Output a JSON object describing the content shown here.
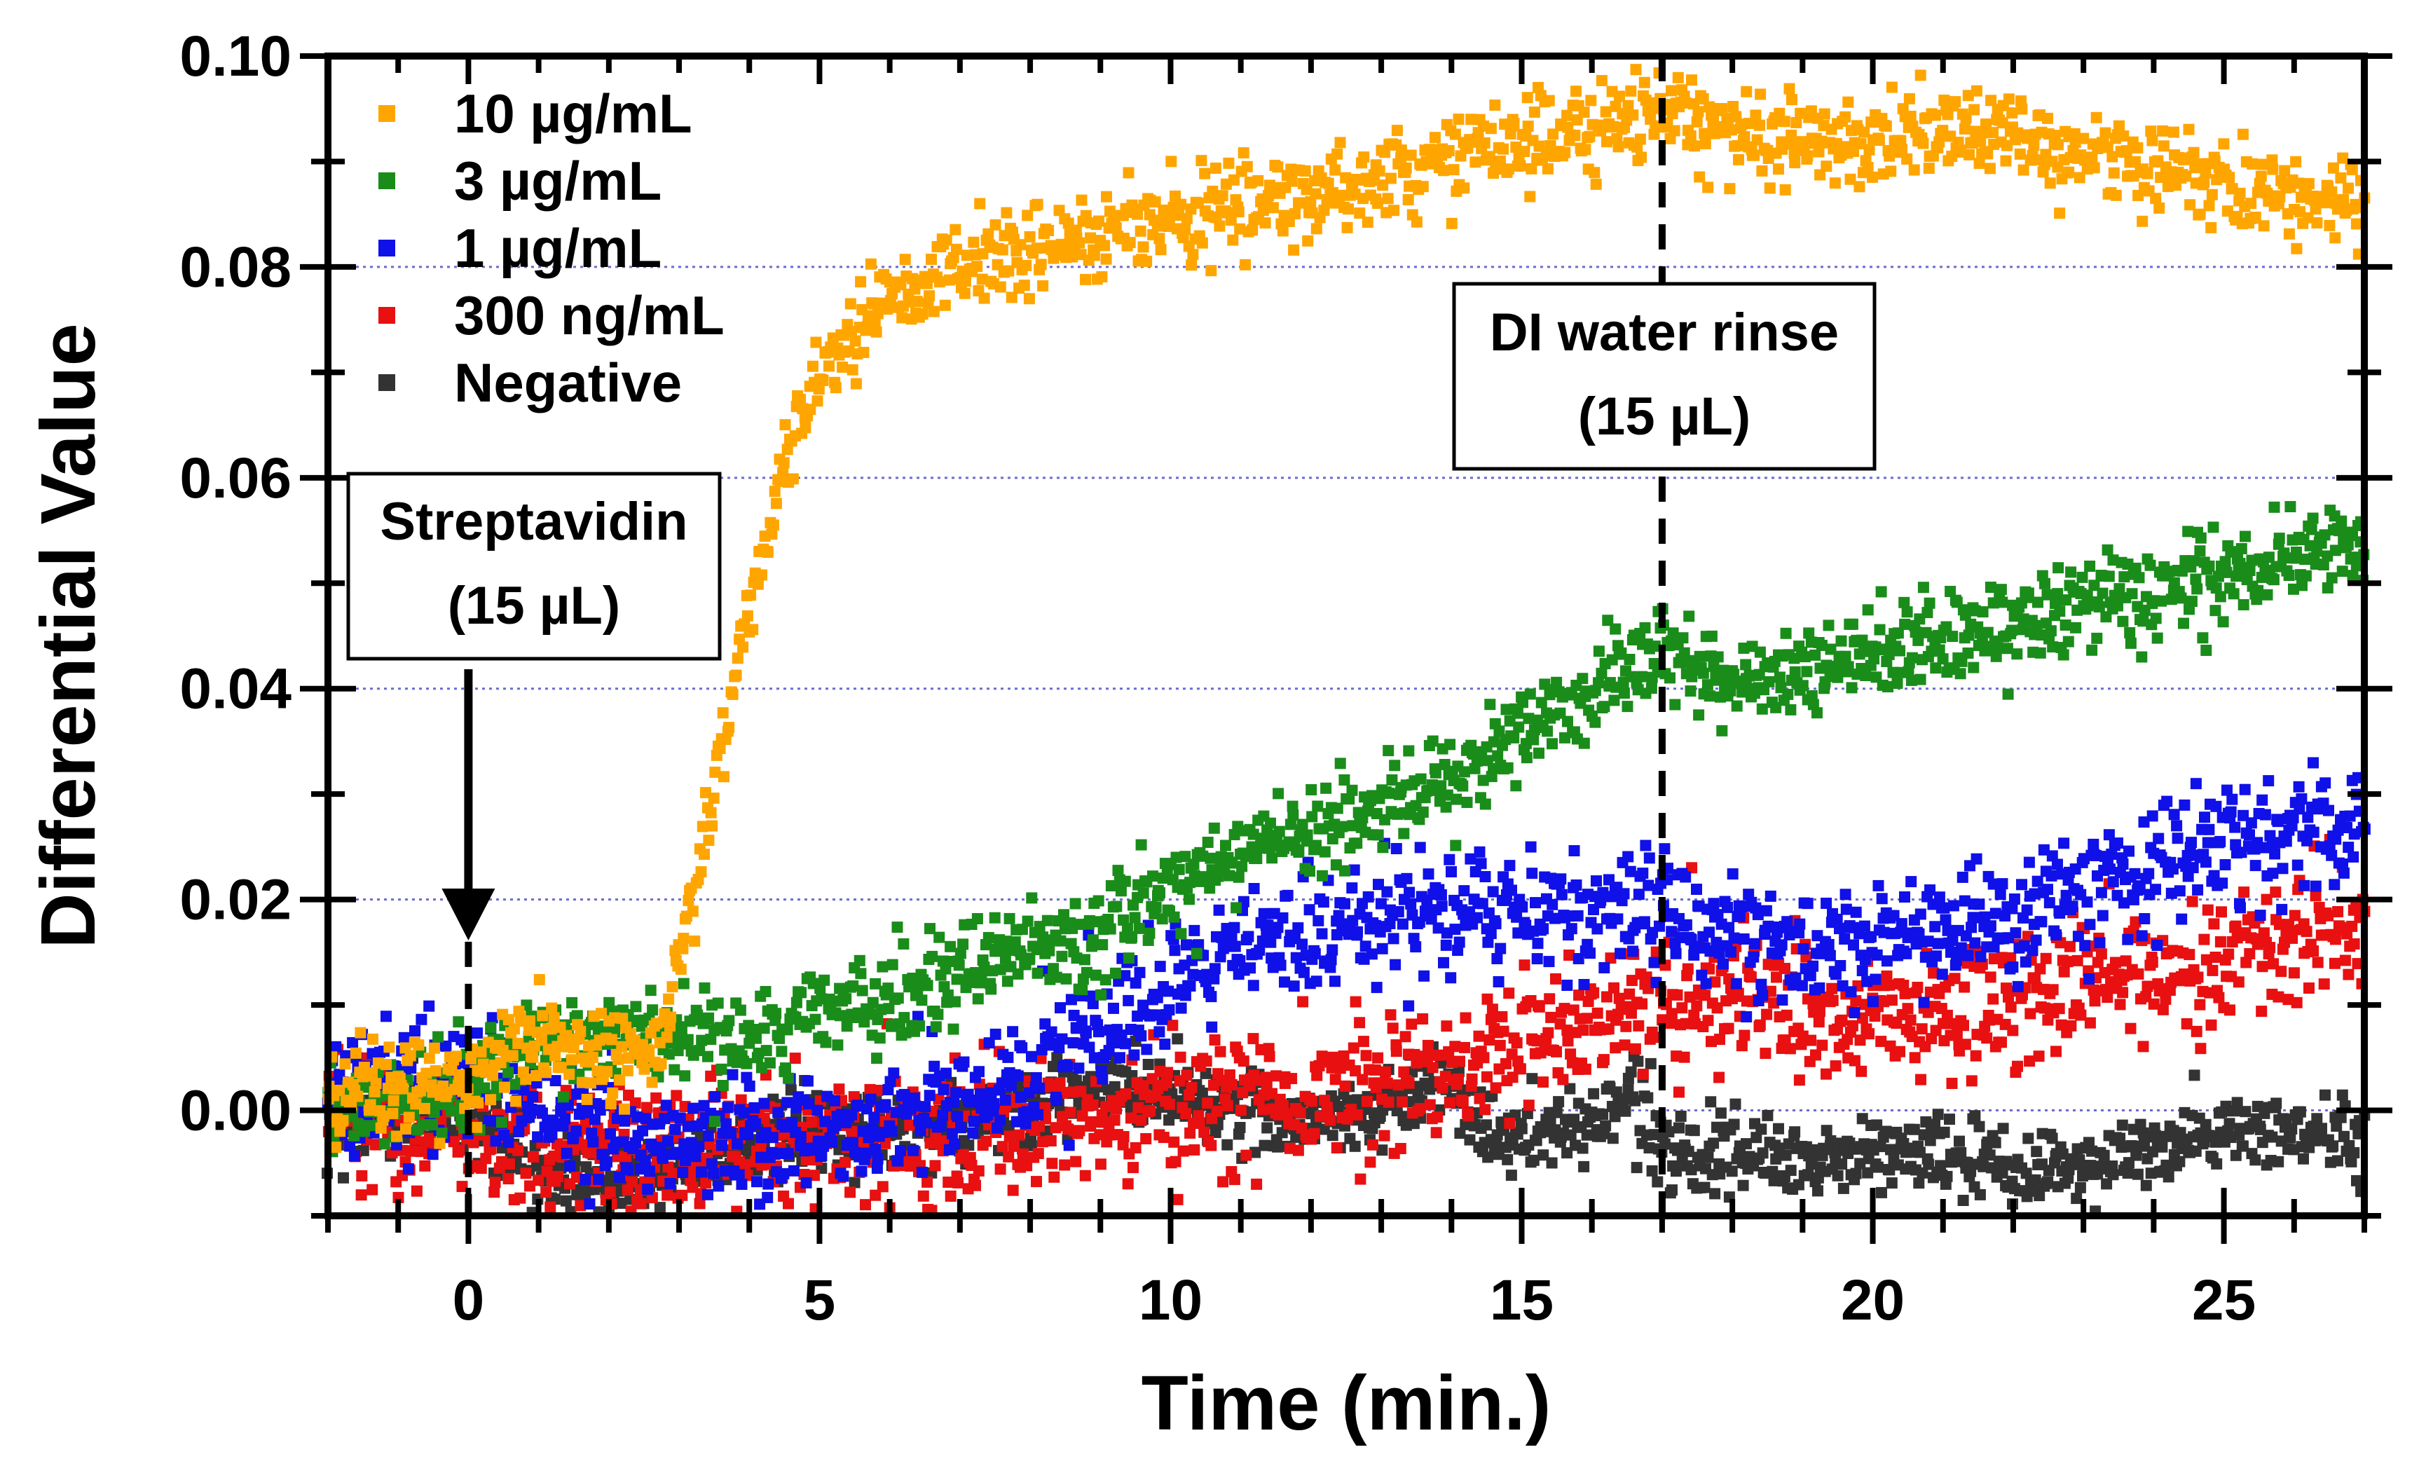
{
  "chart_data": {
    "type": "scatter",
    "title": "",
    "xlabel": "Time (min.)",
    "ylabel": "Differential Value",
    "xlim": [
      -2,
      27
    ],
    "ylim": [
      -0.01,
      0.1
    ],
    "xticks": [
      0,
      5,
      10,
      15,
      20,
      25
    ],
    "yticks": [
      0.0,
      0.02,
      0.04,
      0.06,
      0.08,
      0.1
    ],
    "xtick_labels": [
      "0",
      "5",
      "10",
      "15",
      "20",
      "25"
    ],
    "ytick_labels": [
      "0.00",
      "0.02",
      "0.04",
      "0.06",
      "0.08",
      "0.10"
    ],
    "grid": "horizontal dotted",
    "legend_position": "top-left",
    "series": [
      {
        "name": "10 µg/mL",
        "color": "#FFA500",
        "trend": [
          [
            -2,
            0.001
          ],
          [
            0,
            0.003
          ],
          [
            1,
            0.007
          ],
          [
            2,
            0.005
          ],
          [
            2.7,
            0.006
          ],
          [
            3.0,
            0.014
          ],
          [
            3.5,
            0.03
          ],
          [
            4.0,
            0.048
          ],
          [
            4.5,
            0.062
          ],
          [
            5,
            0.07
          ],
          [
            5.5,
            0.074
          ],
          [
            6,
            0.077
          ],
          [
            7,
            0.08
          ],
          [
            8,
            0.082
          ],
          [
            9,
            0.083
          ],
          [
            10,
            0.085
          ],
          [
            12,
            0.087
          ],
          [
            14,
            0.09
          ],
          [
            15,
            0.092
          ],
          [
            16,
            0.093
          ],
          [
            17,
            0.095
          ],
          [
            18,
            0.093
          ],
          [
            19,
            0.092
          ],
          [
            20,
            0.092
          ],
          [
            21,
            0.093
          ],
          [
            22,
            0.092
          ],
          [
            23,
            0.091
          ],
          [
            24,
            0.09
          ],
          [
            25,
            0.088
          ],
          [
            26,
            0.087
          ],
          [
            27,
            0.086
          ]
        ],
        "noise": 0.002,
        "n_points": 1300
      },
      {
        "name": "3 µg/mL",
        "color": "#1A8C1A",
        "trend": [
          [
            -2,
            0.0
          ],
          [
            0,
            0.002
          ],
          [
            1,
            0.006
          ],
          [
            2,
            0.007
          ],
          [
            3,
            0.007
          ],
          [
            4,
            0.006
          ],
          [
            5,
            0.009
          ],
          [
            6,
            0.011
          ],
          [
            7,
            0.013
          ],
          [
            8,
            0.015
          ],
          [
            9,
            0.017
          ],
          [
            10,
            0.021
          ],
          [
            11,
            0.024
          ],
          [
            12,
            0.027
          ],
          [
            13,
            0.029
          ],
          [
            14,
            0.032
          ],
          [
            15,
            0.036
          ],
          [
            16,
            0.04
          ],
          [
            17,
            0.043
          ],
          [
            18,
            0.04
          ],
          [
            19,
            0.041
          ],
          [
            20,
            0.043
          ],
          [
            21,
            0.045
          ],
          [
            22,
            0.046
          ],
          [
            23,
            0.048
          ],
          [
            24,
            0.049
          ],
          [
            25,
            0.051
          ],
          [
            26,
            0.052
          ],
          [
            27,
            0.054
          ]
        ],
        "noise": 0.0022,
        "n_points": 1300
      },
      {
        "name": "1 µg/mL",
        "color": "#1010E8",
        "trend": [
          [
            -2,
            0.002
          ],
          [
            0,
            0.003
          ],
          [
            1,
            0.0
          ],
          [
            2,
            -0.002
          ],
          [
            3,
            -0.003
          ],
          [
            4,
            -0.003
          ],
          [
            5,
            -0.002
          ],
          [
            6,
            -0.001
          ],
          [
            7,
            0.001
          ],
          [
            8,
            0.004
          ],
          [
            9,
            0.007
          ],
          [
            10,
            0.011
          ],
          [
            11,
            0.015
          ],
          [
            12,
            0.017
          ],
          [
            13,
            0.018
          ],
          [
            14,
            0.019
          ],
          [
            15,
            0.019
          ],
          [
            16,
            0.019
          ],
          [
            17,
            0.019
          ],
          [
            18,
            0.017
          ],
          [
            19,
            0.015
          ],
          [
            20,
            0.016
          ],
          [
            21,
            0.017
          ],
          [
            22,
            0.018
          ],
          [
            23,
            0.021
          ],
          [
            24,
            0.023
          ],
          [
            25,
            0.025
          ],
          [
            26,
            0.026
          ],
          [
            27,
            0.027
          ]
        ],
        "noise": 0.0028,
        "n_points": 1300
      },
      {
        "name": "300 ng/mL",
        "color": "#E81010",
        "trend": [
          [
            -2,
            0.0
          ],
          [
            0,
            -0.002
          ],
          [
            1,
            -0.004
          ],
          [
            2,
            -0.004
          ],
          [
            3,
            -0.004
          ],
          [
            4,
            -0.003
          ],
          [
            5,
            -0.003
          ],
          [
            6,
            -0.002
          ],
          [
            7,
            -0.002
          ],
          [
            8,
            -0.002
          ],
          [
            9,
            -0.001
          ],
          [
            10,
            0.0
          ],
          [
            11,
            0.001
          ],
          [
            12,
            0.002
          ],
          [
            13,
            0.003
          ],
          [
            14,
            0.004
          ],
          [
            15,
            0.006
          ],
          [
            16,
            0.009
          ],
          [
            17,
            0.011
          ],
          [
            18,
            0.011
          ],
          [
            19,
            0.009
          ],
          [
            20,
            0.008
          ],
          [
            21,
            0.009
          ],
          [
            22,
            0.01
          ],
          [
            23,
            0.012
          ],
          [
            24,
            0.013
          ],
          [
            25,
            0.015
          ],
          [
            26,
            0.016
          ],
          [
            27,
            0.017
          ]
        ],
        "noise": 0.0032,
        "n_points": 1300
      },
      {
        "name": "Negative",
        "color": "#333333",
        "trend": [
          [
            -2,
            -0.001
          ],
          [
            0,
            0.0
          ],
          [
            1,
            -0.006
          ],
          [
            2,
            -0.007
          ],
          [
            3,
            -0.005
          ],
          [
            4,
            -0.003
          ],
          [
            5,
            -0.002
          ],
          [
            6,
            -0.002
          ],
          [
            7,
            -0.001
          ],
          [
            8,
            0.0
          ],
          [
            9,
            0.002
          ],
          [
            10,
            0.002
          ],
          [
            11,
            0.0
          ],
          [
            12,
            -0.001
          ],
          [
            13,
            0.0
          ],
          [
            14,
            0.004
          ],
          [
            14.4,
            -0.002
          ],
          [
            15,
            -0.003
          ],
          [
            16,
            -0.001
          ],
          [
            16.6,
            0.002
          ],
          [
            17,
            -0.003
          ],
          [
            18,
            -0.005
          ],
          [
            19,
            -0.005
          ],
          [
            20,
            -0.004
          ],
          [
            21,
            -0.004
          ],
          [
            22,
            -0.006
          ],
          [
            23,
            -0.005
          ],
          [
            24,
            -0.004
          ],
          [
            25,
            -0.002
          ],
          [
            26,
            -0.002
          ],
          [
            27,
            -0.003
          ]
        ],
        "noise": 0.0018,
        "n_points": 1300
      }
    ],
    "annotations": [
      {
        "name": "streptavidin",
        "line1": "Streptavidin",
        "line2": "(15 µL)",
        "x": 0
      },
      {
        "name": "rinse",
        "line1": "DI water rinse",
        "line2": "(15 µL)",
        "x": 17
      }
    ]
  }
}
